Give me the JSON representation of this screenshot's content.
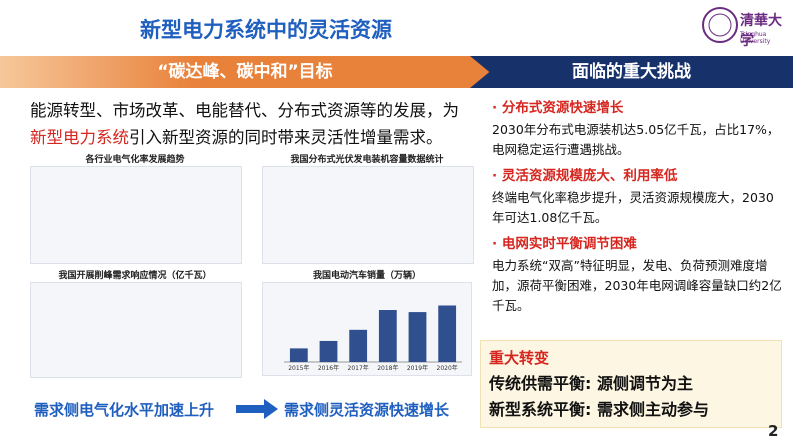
{
  "header": {
    "title": "新型电力系统中的灵活资源",
    "logo": "清華大学",
    "logo_sub": "Tsinghua University"
  },
  "banners": {
    "left": "“碳达峰、碳中和”目标",
    "right": "面临的重大挑战"
  },
  "intro": {
    "line1": "能源转型、市场改革、电能替代、分布式资源等的发展，为",
    "highlight": "新型电力系统",
    "line2_rest": "引入新型资源的同时带来灵活性增量需求。"
  },
  "panels": [
    {
      "title": "各行业电气化率发展趋势"
    },
    {
      "title": "我国分布式光伏发电装机容量数据统计"
    },
    {
      "title": "我国开展削峰需求响应情况（亿千瓦）"
    }
  ],
  "chart_data": {
    "type": "bar",
    "title": "我国电动汽车销量（万辆）",
    "categories": [
      "2015年",
      "2016年",
      "2017年",
      "2018年",
      "2019年",
      "2020年"
    ],
    "values": [
      33,
      51,
      78,
      126,
      121,
      137
    ],
    "color": "#2f4f8f",
    "ylim": [
      0,
      160
    ]
  },
  "challenges": [
    {
      "heading": "· 分布式资源快速增长",
      "text": "2030年分布式电源装机达5.05亿千瓦，占比17%，电网稳定运行遭遇挑战。"
    },
    {
      "heading": "· 灵活资源规模庞大、利用率低",
      "text": "终端电气化率稳步提升，灵活资源规模庞大，2030年可达1.08亿千瓦。"
    },
    {
      "heading": "· 电网实时平衡调节困难",
      "text": "电力系统“双高”特征明显，发电、负荷预测难度增加，源荷平衡困难，2030年电网调峰容量缺口约2亿千瓦。"
    }
  ],
  "captions": {
    "left": "需求侧电气化水平加速上升",
    "right": "需求侧灵活资源快速增长"
  },
  "conclusion": {
    "heading": "重大转变",
    "lines": [
      "传统供需平衡: 源侧调节为主",
      "新型系统平衡: 需求侧主动参与"
    ]
  },
  "page_number": "2"
}
